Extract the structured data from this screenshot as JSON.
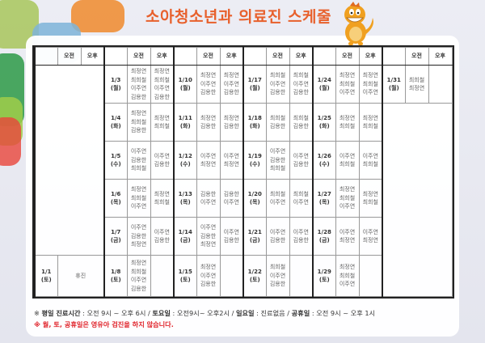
{
  "title": "소아청소년과 의료진 스케줄",
  "colors": {
    "title": "#e8602c",
    "notice": "#e0242b",
    "border": "#222222"
  },
  "header": {
    "date": "",
    "am": "오전",
    "pm": "오후"
  },
  "weeks": [
    {
      "rows": [
        null,
        null,
        null,
        null,
        null,
        {
          "date": "1/1",
          "dow": "(토)",
          "closed": "휴진"
        }
      ]
    },
    {
      "rows": [
        {
          "date": "1/3",
          "dow": "(월)",
          "am": [
            "최정연",
            "최희철",
            "이주연",
            "김용한"
          ],
          "pm": [
            "최정연",
            "최희철",
            "이주연",
            "김용한"
          ]
        },
        {
          "date": "1/4",
          "dow": "(화)",
          "am": [
            "최정연",
            "최희철",
            "김용한"
          ],
          "pm": [
            "최정연",
            "최희철"
          ]
        },
        {
          "date": "1/5",
          "dow": "(수)",
          "am": [
            "이주연",
            "김용한",
            "최희철"
          ],
          "pm": [
            "이주연",
            "김용한"
          ]
        },
        {
          "date": "1/6",
          "dow": "(목)",
          "am": [
            "최정연",
            "최희철",
            "이주연"
          ],
          "pm": [
            "최정연",
            "최희철"
          ]
        },
        {
          "date": "1/7",
          "dow": "(금)",
          "am": [
            "이주연",
            "김용한",
            "최정연"
          ],
          "pm": [
            "이주연",
            "김용한"
          ]
        },
        {
          "date": "1/8",
          "dow": "(토)",
          "am": [
            "최정연",
            "최희철",
            "이주연",
            "김용한"
          ],
          "pm": []
        }
      ]
    },
    {
      "rows": [
        {
          "date": "1/10",
          "dow": "(월)",
          "am": [
            "최정연",
            "이주연",
            "김용한"
          ],
          "pm": [
            "최정연",
            "이주연",
            "김용한"
          ]
        },
        {
          "date": "1/11",
          "dow": "(화)",
          "am": [
            "최정연",
            "김용한"
          ],
          "pm": [
            "최정연",
            "김용한"
          ]
        },
        {
          "date": "1/12",
          "dow": "(수)",
          "am": [
            "이주연",
            "최정연"
          ],
          "pm": [
            "이주연",
            "최정연"
          ]
        },
        {
          "date": "1/13",
          "dow": "(목)",
          "am": [
            "김용한",
            "이주연"
          ],
          "pm": [
            "김용한",
            "이주연"
          ]
        },
        {
          "date": "1/14",
          "dow": "(금)",
          "am": [
            "이주연",
            "김용한",
            "최정연"
          ],
          "pm": [
            "이주연",
            "김용한"
          ]
        },
        {
          "date": "1/15",
          "dow": "(토)",
          "am": [
            "최정연",
            "이주연",
            "김용한"
          ],
          "pm": []
        }
      ]
    },
    {
      "rows": [
        {
          "date": "1/17",
          "dow": "(월)",
          "am": [
            "최희철",
            "이주연",
            "김용한"
          ],
          "pm": [
            "최희철",
            "이주연",
            "김용한"
          ]
        },
        {
          "date": "1/18",
          "dow": "(화)",
          "am": [
            "최희철",
            "김용한"
          ],
          "pm": [
            "최희철",
            "김용한"
          ]
        },
        {
          "date": "1/19",
          "dow": "(수)",
          "am": [
            "이주연",
            "김용한",
            "최희철"
          ],
          "pm": [
            "이주연",
            "김용한"
          ]
        },
        {
          "date": "1/20",
          "dow": "(목)",
          "am": [
            "최희철",
            "이주연"
          ],
          "pm": [
            "최희철",
            "이주연"
          ]
        },
        {
          "date": "1/21",
          "dow": "(금)",
          "am": [
            "이주연",
            "김용한"
          ],
          "pm": [
            "이주연",
            "김용한"
          ]
        },
        {
          "date": "1/22",
          "dow": "(토)",
          "am": [
            "최희철",
            "이주연",
            "김용한"
          ],
          "pm": []
        }
      ]
    },
    {
      "rows": [
        {
          "date": "1/24",
          "dow": "(월)",
          "am": [
            "최정연",
            "최희철",
            "이주연"
          ],
          "pm": [
            "최정연",
            "최희철",
            "이주연"
          ]
        },
        {
          "date": "1/25",
          "dow": "(화)",
          "am": [
            "최정연",
            "최희철"
          ],
          "pm": [
            "최정연",
            "최희철"
          ]
        },
        {
          "date": "1/26",
          "dow": "(수)",
          "am": [
            "이주연",
            "최희철"
          ],
          "pm": [
            "이주연",
            "최희철"
          ]
        },
        {
          "date": "1/27",
          "dow": "(목)",
          "am": [
            "최정연",
            "최희철",
            "이주연"
          ],
          "pm": [
            "최정연",
            "최희철"
          ]
        },
        {
          "date": "1/28",
          "dow": "(금)",
          "am": [
            "이주연",
            "최정연"
          ],
          "pm": [
            "이주연",
            "최정연"
          ]
        },
        {
          "date": "1/29",
          "dow": "(토)",
          "am": [
            "최정연",
            "최희철",
            "이주연"
          ],
          "pm": []
        }
      ]
    },
    {
      "rows": [
        {
          "date": "1/31",
          "dow": "(월)",
          "am": [
            "최희철",
            "최정연"
          ],
          "pm": []
        },
        null,
        null,
        null,
        null,
        null
      ]
    }
  ],
  "footer": {
    "line1": [
      {
        "text": "※ ",
        "bold": false
      },
      {
        "text": "평일 진료시간",
        "bold": true
      },
      {
        "text": " : 오전 9시 ~ 오후 6시 / ",
        "bold": false
      },
      {
        "text": "토요일",
        "bold": true
      },
      {
        "text": " : 오전9시~ 오후2시 / ",
        "bold": false
      },
      {
        "text": "일요일",
        "bold": true
      },
      {
        "text": " : 진료없음 / ",
        "bold": false
      },
      {
        "text": "공휴일",
        "bold": true
      },
      {
        "text": " : 오전 9시 ~ 오후 1시",
        "bold": false
      }
    ],
    "line2": "※ 월, 토, 공휴일은 영유아 검진을 하지 않습니다."
  }
}
